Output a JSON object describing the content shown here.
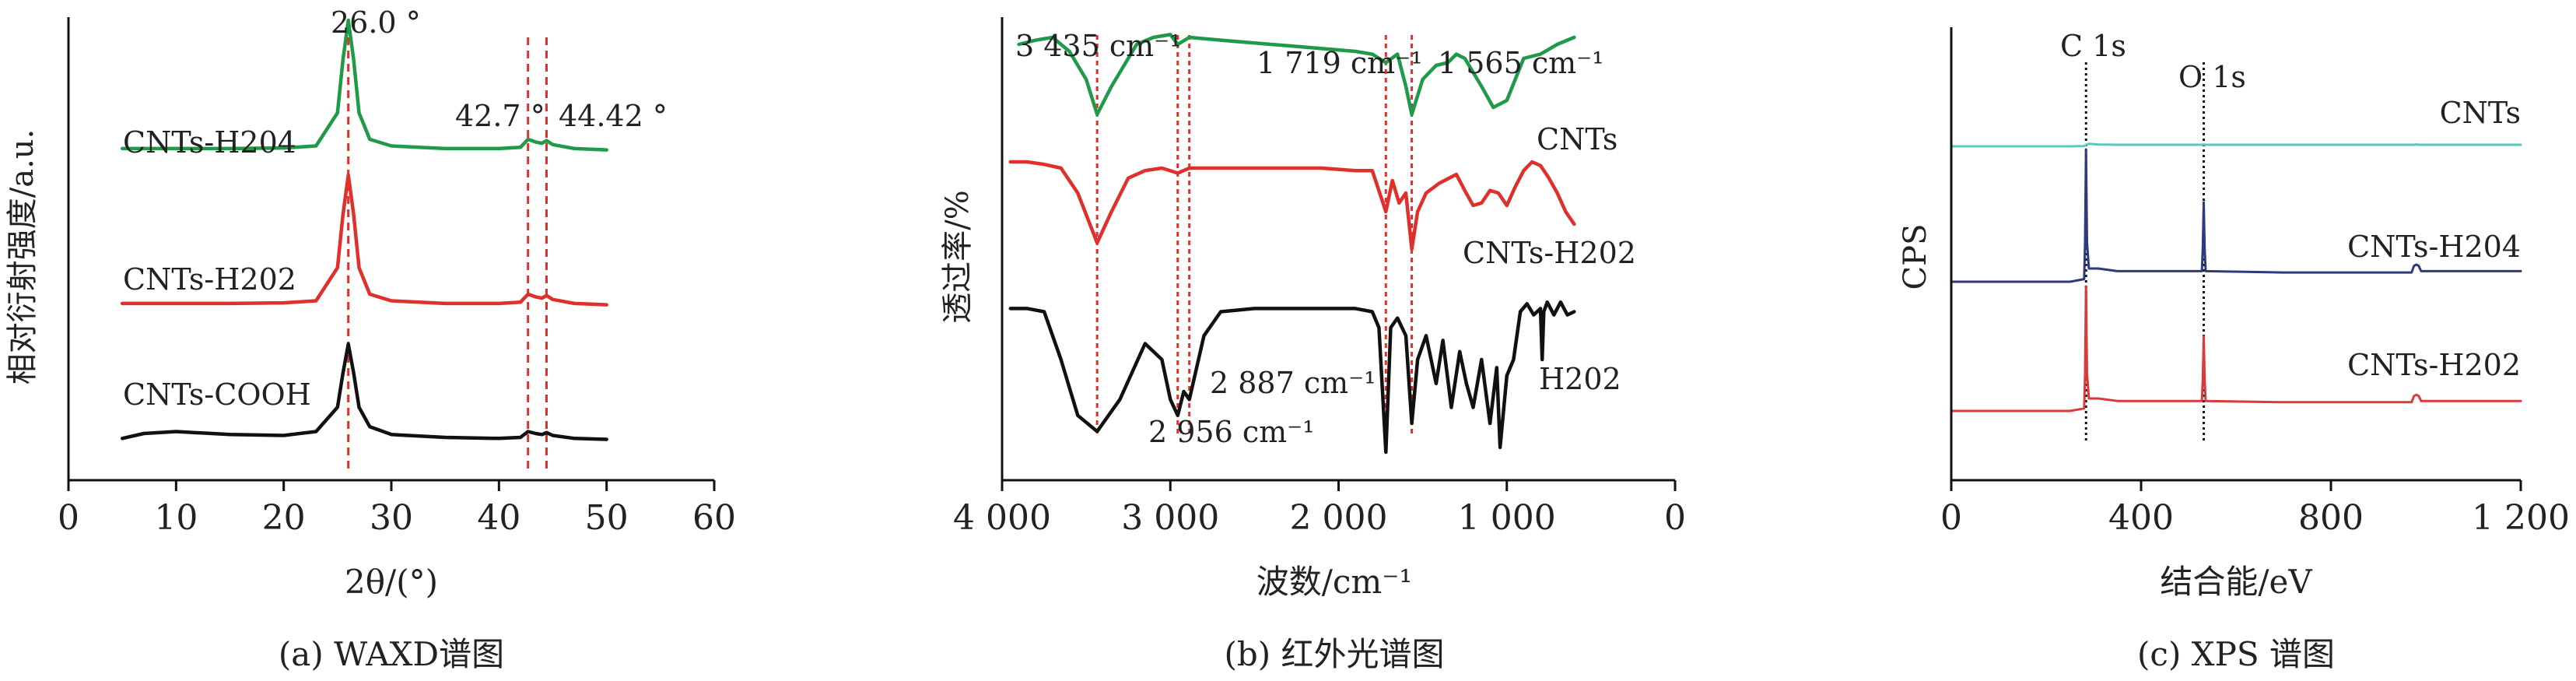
{
  "chart_data": [
    {
      "type": "line",
      "title": "",
      "caption": "(a) WAXD谱图",
      "xlabel": "2θ/(°)",
      "ylabel": "相对衍射强度/a.u.",
      "xlim": [
        0,
        60
      ],
      "xticks": [
        0,
        10,
        20,
        30,
        40,
        50,
        60
      ],
      "yticks_shown": false,
      "annotations": [
        "26.0 °",
        "42.7 °",
        "44.42 °"
      ],
      "reference_lines": [
        26.0,
        42.7,
        44.42
      ],
      "series": [
        {
          "name": "CNTs-H204",
          "color": "#1f9a48",
          "x": [
            5,
            10,
            15,
            20,
            23,
            25,
            25.5,
            26.0,
            26.5,
            27,
            28,
            30,
            35,
            40,
            42,
            42.7,
            43.4,
            44.0,
            44.42,
            45,
            47,
            50
          ],
          "y": [
            0.03,
            0.03,
            0.03,
            0.035,
            0.05,
            0.3,
            0.7,
            1.0,
            0.7,
            0.3,
            0.1,
            0.05,
            0.03,
            0.03,
            0.04,
            0.1,
            0.08,
            0.07,
            0.09,
            0.06,
            0.03,
            0.02
          ]
        },
        {
          "name": "CNTs-H202",
          "color": "#e0302b",
          "x": [
            5,
            10,
            15,
            20,
            23,
            25,
            25.5,
            26.0,
            26.5,
            27,
            28,
            30,
            35,
            40,
            42,
            42.7,
            43.4,
            44.0,
            44.42,
            45,
            47,
            50
          ],
          "y": [
            0.03,
            0.03,
            0.03,
            0.035,
            0.05,
            0.3,
            0.7,
            1.0,
            0.7,
            0.3,
            0.1,
            0.05,
            0.03,
            0.03,
            0.04,
            0.1,
            0.08,
            0.07,
            0.09,
            0.06,
            0.03,
            0.02
          ]
        },
        {
          "name": "CNTs-COOH",
          "color": "#111111",
          "x": [
            5,
            7,
            10,
            15,
            20,
            23,
            25,
            25.5,
            26.0,
            26.5,
            27,
            28,
            30,
            35,
            40,
            42,
            42.7,
            43.4,
            44.0,
            44.42,
            45,
            47,
            50
          ],
          "y": [
            0.03,
            0.08,
            0.1,
            0.07,
            0.06,
            0.1,
            0.35,
            0.7,
            1.0,
            0.7,
            0.35,
            0.15,
            0.07,
            0.04,
            0.03,
            0.04,
            0.1,
            0.08,
            0.07,
            0.09,
            0.06,
            0.03,
            0.02
          ]
        }
      ]
    },
    {
      "type": "line",
      "title": "",
      "caption": "(b) 红外光谱图",
      "xlabel": "波数/cm⁻¹",
      "ylabel": "透过率/%",
      "xlim": [
        4000,
        0
      ],
      "xticks": [
        4000,
        3000,
        2000,
        1000,
        0
      ],
      "xtick_labels": [
        "4 000",
        "3 000",
        "2 000",
        "1 000",
        "0"
      ],
      "yticks_shown": false,
      "annotations": [
        "3 435 cm⁻¹",
        "1 719 cm⁻¹",
        "1 565 cm⁻¹",
        "2 887 cm⁻¹",
        "2 956 cm⁻¹"
      ],
      "reference_lines": [
        3435,
        2956,
        2887,
        1719,
        1565
      ],
      "series": [
        {
          "name": "CNTs",
          "color": "#1f9a48",
          "x": [
            3900,
            3800,
            3700,
            3600,
            3500,
            3435,
            3350,
            3200,
            3100,
            3000,
            2956,
            2887,
            2700,
            2500,
            2300,
            2100,
            1900,
            1800,
            1719,
            1650,
            1600,
            1565,
            1500,
            1420,
            1350,
            1300,
            1250,
            1150,
            1080,
            1000,
            950,
            900,
            800,
            700,
            600
          ],
          "y": [
            0.85,
            0.88,
            0.9,
            0.8,
            0.6,
            0.35,
            0.55,
            0.85,
            0.9,
            0.92,
            0.85,
            0.9,
            0.88,
            0.86,
            0.84,
            0.82,
            0.8,
            0.78,
            0.72,
            0.78,
            0.55,
            0.35,
            0.6,
            0.7,
            0.72,
            0.78,
            0.75,
            0.55,
            0.4,
            0.45,
            0.6,
            0.75,
            0.78,
            0.85,
            0.9
          ]
        },
        {
          "name": "CNTs-H202",
          "color": "#e0302b",
          "x": [
            3950,
            3850,
            3750,
            3650,
            3550,
            3435,
            3350,
            3250,
            3150,
            3050,
            2956,
            2887,
            2700,
            2500,
            2300,
            2100,
            1900,
            1800,
            1719,
            1680,
            1640,
            1600,
            1565,
            1530,
            1480,
            1400,
            1300,
            1250,
            1200,
            1150,
            1100,
            1050,
            1000,
            950,
            900,
            850,
            800,
            750,
            700,
            650,
            600
          ],
          "y": [
            0.95,
            0.95,
            0.93,
            0.9,
            0.7,
            0.3,
            0.55,
            0.82,
            0.88,
            0.9,
            0.86,
            0.9,
            0.9,
            0.9,
            0.9,
            0.9,
            0.88,
            0.88,
            0.55,
            0.8,
            0.62,
            0.7,
            0.25,
            0.55,
            0.7,
            0.78,
            0.85,
            0.72,
            0.6,
            0.62,
            0.72,
            0.7,
            0.6,
            0.75,
            0.88,
            0.95,
            0.92,
            0.82,
            0.7,
            0.55,
            0.45
          ]
        },
        {
          "name": "H202",
          "color": "#111111",
          "x": [
            3950,
            3850,
            3750,
            3650,
            3550,
            3435,
            3300,
            3150,
            3050,
            3000,
            2956,
            2920,
            2887,
            2800,
            2700,
            2500,
            2300,
            2100,
            2000,
            1900,
            1800,
            1760,
            1719,
            1690,
            1650,
            1600,
            1565,
            1530,
            1480,
            1420,
            1380,
            1330,
            1280,
            1240,
            1200,
            1150,
            1100,
            1060,
            1040,
            1000,
            960,
            920,
            880,
            840,
            800,
            790,
            780,
            760,
            720,
            680,
            640,
            600
          ],
          "y": [
            0.92,
            0.92,
            0.9,
            0.6,
            0.25,
            0.15,
            0.35,
            0.7,
            0.6,
            0.35,
            0.25,
            0.4,
            0.35,
            0.75,
            0.9,
            0.92,
            0.92,
            0.92,
            0.92,
            0.92,
            0.9,
            0.8,
            0.02,
            0.8,
            0.86,
            0.75,
            0.2,
            0.6,
            0.75,
            0.45,
            0.72,
            0.3,
            0.65,
            0.45,
            0.3,
            0.6,
            0.2,
            0.55,
            0.05,
            0.5,
            0.6,
            0.9,
            0.95,
            0.88,
            0.92,
            0.6,
            0.9,
            0.96,
            0.88,
            0.96,
            0.88,
            0.9
          ]
        }
      ]
    },
    {
      "type": "line",
      "title": "",
      "caption": "(c) XPS 谱图",
      "xlabel": "结合能/eV",
      "ylabel": "CPS",
      "xlim": [
        0,
        1200
      ],
      "xticks": [
        0,
        400,
        800,
        1200
      ],
      "xtick_labels": [
        "0",
        "400",
        "800",
        "1 200"
      ],
      "yticks_shown": false,
      "annotations": [
        "C 1s",
        "O 1s"
      ],
      "reference_lines": [
        284,
        532
      ],
      "series": [
        {
          "name": "CNTs",
          "color": "#5bc8c0",
          "x": [
            0,
            250,
            280,
            284,
            290,
            310,
            350,
            530,
            532,
            534,
            700,
            975,
            980,
            985,
            1200
          ],
          "y": [
            0.0,
            0.0,
            0.01,
            0.05,
            0.08,
            0.06,
            0.05,
            0.05,
            0.06,
            0.05,
            0.05,
            0.05,
            0.06,
            0.05,
            0.05
          ]
        },
        {
          "name": "CNTs-H204",
          "color": "#2e3a7c",
          "x": [
            0,
            250,
            280,
            282,
            284,
            286,
            290,
            310,
            350,
            528,
            530,
            532,
            534,
            536,
            700,
            970,
            975,
            980,
            985,
            990,
            1200
          ],
          "y": [
            0.0,
            0.0,
            0.02,
            0.3,
            1.0,
            0.3,
            0.1,
            0.1,
            0.08,
            0.08,
            0.25,
            0.6,
            0.25,
            0.08,
            0.07,
            0.07,
            0.12,
            0.13,
            0.12,
            0.08,
            0.08
          ]
        },
        {
          "name": "CNTs-H202",
          "color": "#d93a3a",
          "x": [
            0,
            250,
            280,
            282,
            284,
            286,
            290,
            310,
            350,
            528,
            530,
            532,
            534,
            536,
            700,
            970,
            975,
            980,
            985,
            990,
            1200
          ],
          "y": [
            0.0,
            0.0,
            0.02,
            0.3,
            1.0,
            0.3,
            0.1,
            0.1,
            0.08,
            0.08,
            0.25,
            0.6,
            0.25,
            0.08,
            0.07,
            0.07,
            0.12,
            0.13,
            0.12,
            0.08,
            0.08
          ]
        }
      ]
    }
  ]
}
